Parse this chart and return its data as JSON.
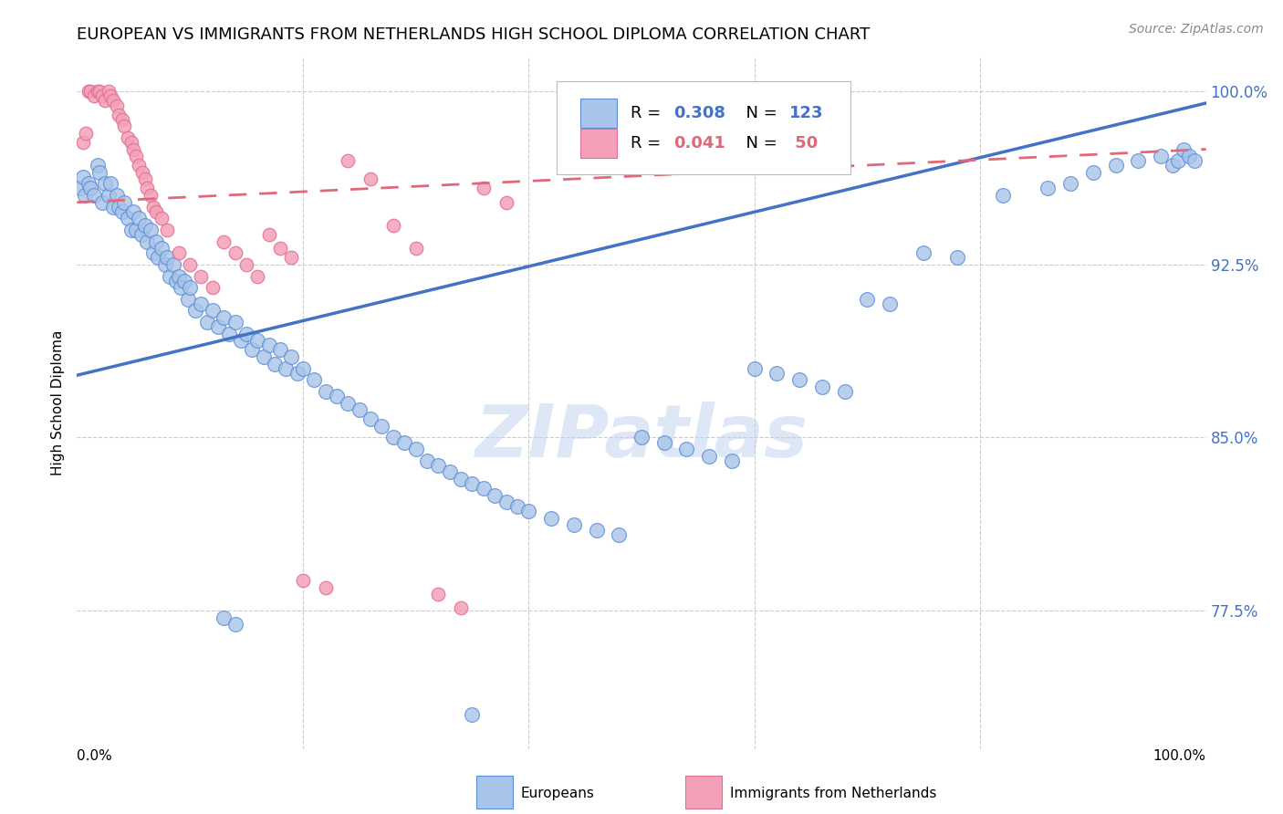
{
  "title": "EUROPEAN VS IMMIGRANTS FROM NETHERLANDS HIGH SCHOOL DIPLOMA CORRELATION CHART",
  "source": "Source: ZipAtlas.com",
  "ylabel": "High School Diploma",
  "ytick_labels": [
    "77.5%",
    "85.0%",
    "92.5%",
    "100.0%"
  ],
  "ytick_values": [
    0.775,
    0.85,
    0.925,
    1.0
  ],
  "xlim": [
    0.0,
    1.0
  ],
  "ylim": [
    0.715,
    1.015
  ],
  "blue_color": "#A8C4E8",
  "pink_color": "#F4A0B8",
  "blue_edge_color": "#5B8DD9",
  "pink_edge_color": "#E07090",
  "blue_line_color": "#4472C4",
  "pink_line_color": "#E06878",
  "tick_color": "#4472C4",
  "watermark": "ZIPatlas",
  "blue_R": 0.308,
  "blue_N": 123,
  "pink_R": 0.041,
  "pink_N": 50,
  "blue_line_start_y": 0.877,
  "blue_line_end_y": 0.995,
  "pink_line_start_y": 0.952,
  "pink_line_end_y": 0.975,
  "blue_x": [
    0.003,
    0.005,
    0.007,
    0.01,
    0.012,
    0.015,
    0.018,
    0.02,
    0.022,
    0.025,
    0.028,
    0.03,
    0.032,
    0.035,
    0.037,
    0.04,
    0.042,
    0.045,
    0.048,
    0.05,
    0.052,
    0.055,
    0.057,
    0.06,
    0.062,
    0.065,
    0.068,
    0.07,
    0.072,
    0.075,
    0.078,
    0.08,
    0.082,
    0.085,
    0.088,
    0.09,
    0.092,
    0.095,
    0.098,
    0.1,
    0.105,
    0.11,
    0.115,
    0.12,
    0.125,
    0.13,
    0.135,
    0.14,
    0.145,
    0.15,
    0.155,
    0.16,
    0.165,
    0.17,
    0.175,
    0.18,
    0.185,
    0.19,
    0.195,
    0.2,
    0.21,
    0.22,
    0.23,
    0.24,
    0.25,
    0.26,
    0.27,
    0.28,
    0.29,
    0.3,
    0.31,
    0.32,
    0.33,
    0.34,
    0.35,
    0.36,
    0.37,
    0.38,
    0.39,
    0.4,
    0.42,
    0.44,
    0.46,
    0.48,
    0.5,
    0.52,
    0.54,
    0.56,
    0.58,
    0.6,
    0.62,
    0.64,
    0.66,
    0.68,
    0.7,
    0.72,
    0.75,
    0.78,
    0.82,
    0.86,
    0.88,
    0.9,
    0.92,
    0.94,
    0.96,
    0.97,
    0.975,
    0.98,
    0.985,
    0.99,
    0.13,
    0.14,
    0.35
  ],
  "blue_y": [
    0.958,
    0.963,
    0.955,
    0.96,
    0.958,
    0.955,
    0.968,
    0.965,
    0.952,
    0.96,
    0.955,
    0.96,
    0.95,
    0.955,
    0.95,
    0.948,
    0.952,
    0.945,
    0.94,
    0.948,
    0.94,
    0.945,
    0.938,
    0.942,
    0.935,
    0.94,
    0.93,
    0.935,
    0.928,
    0.932,
    0.925,
    0.928,
    0.92,
    0.925,
    0.918,
    0.92,
    0.915,
    0.918,
    0.91,
    0.915,
    0.905,
    0.908,
    0.9,
    0.905,
    0.898,
    0.902,
    0.895,
    0.9,
    0.892,
    0.895,
    0.888,
    0.892,
    0.885,
    0.89,
    0.882,
    0.888,
    0.88,
    0.885,
    0.878,
    0.88,
    0.875,
    0.87,
    0.868,
    0.865,
    0.862,
    0.858,
    0.855,
    0.85,
    0.848,
    0.845,
    0.84,
    0.838,
    0.835,
    0.832,
    0.83,
    0.828,
    0.825,
    0.822,
    0.82,
    0.818,
    0.815,
    0.812,
    0.81,
    0.808,
    0.85,
    0.848,
    0.845,
    0.842,
    0.84,
    0.88,
    0.878,
    0.875,
    0.872,
    0.87,
    0.91,
    0.908,
    0.93,
    0.928,
    0.955,
    0.958,
    0.96,
    0.965,
    0.968,
    0.97,
    0.972,
    0.968,
    0.97,
    0.975,
    0.972,
    0.97,
    0.772,
    0.769,
    0.73
  ],
  "pink_x": [
    0.005,
    0.008,
    0.01,
    0.012,
    0.015,
    0.018,
    0.02,
    0.022,
    0.025,
    0.028,
    0.03,
    0.032,
    0.035,
    0.037,
    0.04,
    0.042,
    0.045,
    0.048,
    0.05,
    0.052,
    0.055,
    0.058,
    0.06,
    0.062,
    0.065,
    0.068,
    0.07,
    0.075,
    0.08,
    0.09,
    0.1,
    0.11,
    0.12,
    0.13,
    0.14,
    0.15,
    0.16,
    0.17,
    0.18,
    0.19,
    0.2,
    0.22,
    0.24,
    0.26,
    0.28,
    0.3,
    0.32,
    0.34,
    0.36,
    0.38
  ],
  "pink_y": [
    0.978,
    0.982,
    1.0,
    1.0,
    0.998,
    1.0,
    1.0,
    0.998,
    0.996,
    1.0,
    0.998,
    0.996,
    0.994,
    0.99,
    0.988,
    0.985,
    0.98,
    0.978,
    0.975,
    0.972,
    0.968,
    0.965,
    0.962,
    0.958,
    0.955,
    0.95,
    0.948,
    0.945,
    0.94,
    0.93,
    0.925,
    0.92,
    0.915,
    0.935,
    0.93,
    0.925,
    0.92,
    0.938,
    0.932,
    0.928,
    0.788,
    0.785,
    0.97,
    0.962,
    0.942,
    0.932,
    0.782,
    0.776,
    0.958,
    0.952
  ]
}
